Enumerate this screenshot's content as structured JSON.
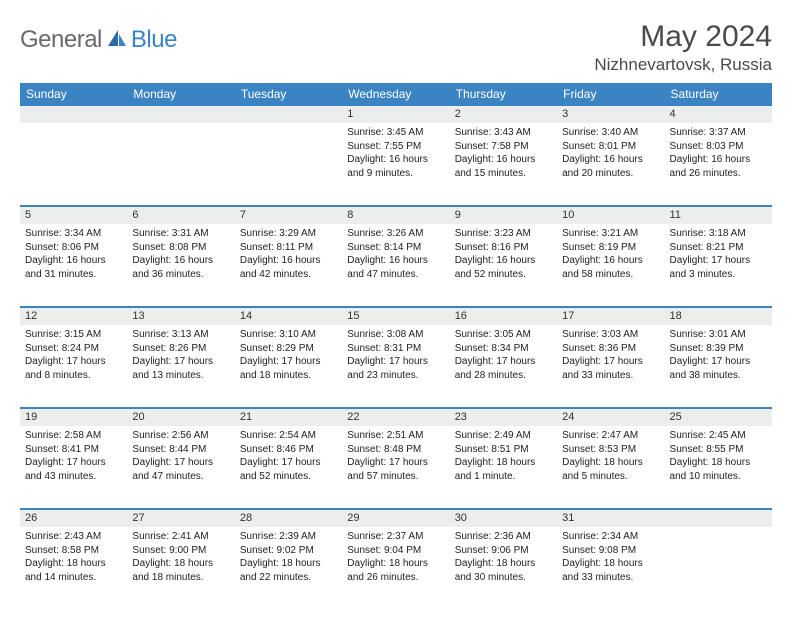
{
  "brand": {
    "general": "General",
    "blue": "Blue"
  },
  "title": {
    "month": "May 2024",
    "location": "Nizhnevartovsk, Russia"
  },
  "colors": {
    "header_bg": "#3b84c4",
    "header_text": "#ffffff",
    "daynum_bg": "#eceded",
    "divider": "#3b84c4",
    "brand_gray": "#6a6a6a",
    "brand_blue": "#3b84c4",
    "body_text": "#222222"
  },
  "day_names": [
    "Sunday",
    "Monday",
    "Tuesday",
    "Wednesday",
    "Thursday",
    "Friday",
    "Saturday"
  ],
  "weeks": [
    [
      {
        "n": "",
        "sr": "",
        "ss": "",
        "dl": ""
      },
      {
        "n": "",
        "sr": "",
        "ss": "",
        "dl": ""
      },
      {
        "n": "",
        "sr": "",
        "ss": "",
        "dl": ""
      },
      {
        "n": "1",
        "sr": "Sunrise: 3:45 AM",
        "ss": "Sunset: 7:55 PM",
        "dl": "Daylight: 16 hours and 9 minutes."
      },
      {
        "n": "2",
        "sr": "Sunrise: 3:43 AM",
        "ss": "Sunset: 7:58 PM",
        "dl": "Daylight: 16 hours and 15 minutes."
      },
      {
        "n": "3",
        "sr": "Sunrise: 3:40 AM",
        "ss": "Sunset: 8:01 PM",
        "dl": "Daylight: 16 hours and 20 minutes."
      },
      {
        "n": "4",
        "sr": "Sunrise: 3:37 AM",
        "ss": "Sunset: 8:03 PM",
        "dl": "Daylight: 16 hours and 26 minutes."
      }
    ],
    [
      {
        "n": "5",
        "sr": "Sunrise: 3:34 AM",
        "ss": "Sunset: 8:06 PM",
        "dl": "Daylight: 16 hours and 31 minutes."
      },
      {
        "n": "6",
        "sr": "Sunrise: 3:31 AM",
        "ss": "Sunset: 8:08 PM",
        "dl": "Daylight: 16 hours and 36 minutes."
      },
      {
        "n": "7",
        "sr": "Sunrise: 3:29 AM",
        "ss": "Sunset: 8:11 PM",
        "dl": "Daylight: 16 hours and 42 minutes."
      },
      {
        "n": "8",
        "sr": "Sunrise: 3:26 AM",
        "ss": "Sunset: 8:14 PM",
        "dl": "Daylight: 16 hours and 47 minutes."
      },
      {
        "n": "9",
        "sr": "Sunrise: 3:23 AM",
        "ss": "Sunset: 8:16 PM",
        "dl": "Daylight: 16 hours and 52 minutes."
      },
      {
        "n": "10",
        "sr": "Sunrise: 3:21 AM",
        "ss": "Sunset: 8:19 PM",
        "dl": "Daylight: 16 hours and 58 minutes."
      },
      {
        "n": "11",
        "sr": "Sunrise: 3:18 AM",
        "ss": "Sunset: 8:21 PM",
        "dl": "Daylight: 17 hours and 3 minutes."
      }
    ],
    [
      {
        "n": "12",
        "sr": "Sunrise: 3:15 AM",
        "ss": "Sunset: 8:24 PM",
        "dl": "Daylight: 17 hours and 8 minutes."
      },
      {
        "n": "13",
        "sr": "Sunrise: 3:13 AM",
        "ss": "Sunset: 8:26 PM",
        "dl": "Daylight: 17 hours and 13 minutes."
      },
      {
        "n": "14",
        "sr": "Sunrise: 3:10 AM",
        "ss": "Sunset: 8:29 PM",
        "dl": "Daylight: 17 hours and 18 minutes."
      },
      {
        "n": "15",
        "sr": "Sunrise: 3:08 AM",
        "ss": "Sunset: 8:31 PM",
        "dl": "Daylight: 17 hours and 23 minutes."
      },
      {
        "n": "16",
        "sr": "Sunrise: 3:05 AM",
        "ss": "Sunset: 8:34 PM",
        "dl": "Daylight: 17 hours and 28 minutes."
      },
      {
        "n": "17",
        "sr": "Sunrise: 3:03 AM",
        "ss": "Sunset: 8:36 PM",
        "dl": "Daylight: 17 hours and 33 minutes."
      },
      {
        "n": "18",
        "sr": "Sunrise: 3:01 AM",
        "ss": "Sunset: 8:39 PM",
        "dl": "Daylight: 17 hours and 38 minutes."
      }
    ],
    [
      {
        "n": "19",
        "sr": "Sunrise: 2:58 AM",
        "ss": "Sunset: 8:41 PM",
        "dl": "Daylight: 17 hours and 43 minutes."
      },
      {
        "n": "20",
        "sr": "Sunrise: 2:56 AM",
        "ss": "Sunset: 8:44 PM",
        "dl": "Daylight: 17 hours and 47 minutes."
      },
      {
        "n": "21",
        "sr": "Sunrise: 2:54 AM",
        "ss": "Sunset: 8:46 PM",
        "dl": "Daylight: 17 hours and 52 minutes."
      },
      {
        "n": "22",
        "sr": "Sunrise: 2:51 AM",
        "ss": "Sunset: 8:48 PM",
        "dl": "Daylight: 17 hours and 57 minutes."
      },
      {
        "n": "23",
        "sr": "Sunrise: 2:49 AM",
        "ss": "Sunset: 8:51 PM",
        "dl": "Daylight: 18 hours and 1 minute."
      },
      {
        "n": "24",
        "sr": "Sunrise: 2:47 AM",
        "ss": "Sunset: 8:53 PM",
        "dl": "Daylight: 18 hours and 5 minutes."
      },
      {
        "n": "25",
        "sr": "Sunrise: 2:45 AM",
        "ss": "Sunset: 8:55 PM",
        "dl": "Daylight: 18 hours and 10 minutes."
      }
    ],
    [
      {
        "n": "26",
        "sr": "Sunrise: 2:43 AM",
        "ss": "Sunset: 8:58 PM",
        "dl": "Daylight: 18 hours and 14 minutes."
      },
      {
        "n": "27",
        "sr": "Sunrise: 2:41 AM",
        "ss": "Sunset: 9:00 PM",
        "dl": "Daylight: 18 hours and 18 minutes."
      },
      {
        "n": "28",
        "sr": "Sunrise: 2:39 AM",
        "ss": "Sunset: 9:02 PM",
        "dl": "Daylight: 18 hours and 22 minutes."
      },
      {
        "n": "29",
        "sr": "Sunrise: 2:37 AM",
        "ss": "Sunset: 9:04 PM",
        "dl": "Daylight: 18 hours and 26 minutes."
      },
      {
        "n": "30",
        "sr": "Sunrise: 2:36 AM",
        "ss": "Sunset: 9:06 PM",
        "dl": "Daylight: 18 hours and 30 minutes."
      },
      {
        "n": "31",
        "sr": "Sunrise: 2:34 AM",
        "ss": "Sunset: 9:08 PM",
        "dl": "Daylight: 18 hours and 33 minutes."
      },
      {
        "n": "",
        "sr": "",
        "ss": "",
        "dl": ""
      }
    ]
  ]
}
